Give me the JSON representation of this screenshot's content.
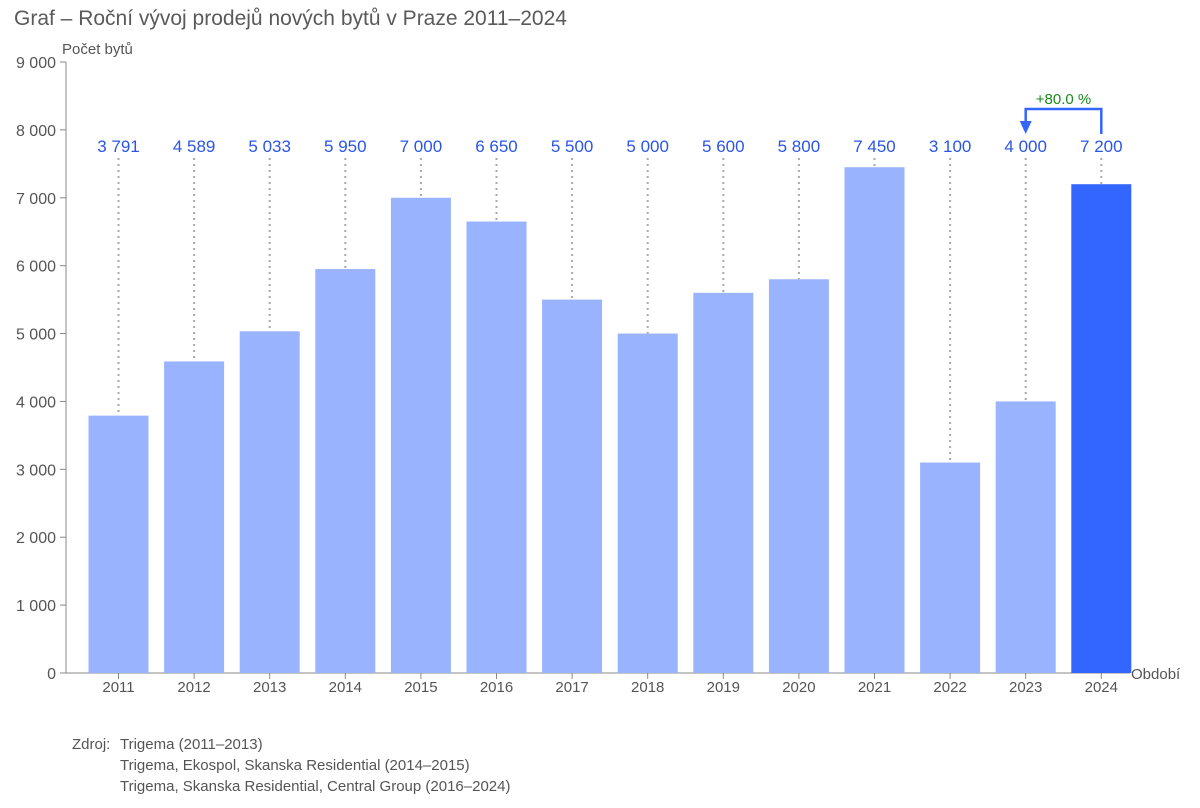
{
  "chart_data": {
    "type": "bar",
    "title": "Graf – Roční vývoj prodejů nových bytů v Praze 2011–2024",
    "ylabel": "Počet bytů",
    "xlabel": "Období",
    "ylim": [
      0,
      9000
    ],
    "yticks": [
      0,
      1000,
      2000,
      3000,
      4000,
      5000,
      6000,
      7000,
      8000,
      9000
    ],
    "ytick_labels": [
      "0",
      "1 000",
      "2 000",
      "3 000",
      "4 000",
      "5 000",
      "6 000",
      "7 000",
      "8 000",
      "9 000"
    ],
    "categories": [
      "2011",
      "2012",
      "2013",
      "2014",
      "2015",
      "2016",
      "2017",
      "2018",
      "2019",
      "2020",
      "2021",
      "2022",
      "2023",
      "2024"
    ],
    "values": [
      3791,
      4589,
      5033,
      5950,
      7000,
      6650,
      5500,
      5000,
      5600,
      5800,
      7450,
      3100,
      4000,
      7200
    ],
    "value_labels": [
      "3 791",
      "4 589",
      "5 033",
      "5 950",
      "7 000",
      "6 650",
      "5 500",
      "5 000",
      "5 600",
      "5 800",
      "7 450",
      "3 100",
      "4 000",
      "7 200"
    ],
    "highlight_index": 13,
    "grid": false,
    "annotation": {
      "text": "+80.0 %",
      "from_index": 12,
      "to_index": 13,
      "color": "#1a8a1a"
    },
    "colors": {
      "bar": "#99b3ff",
      "highlight": "#3366ff",
      "label": "#2a55e8",
      "axis": "#888888",
      "guide": "#aaaaaa"
    }
  },
  "source": {
    "label": "Zdroj:",
    "lines": [
      "Trigema (2011–2013)",
      "Trigema, Ekospol, Skanska Residential (2014–2015)",
      "Trigema, Skanska Residential, Central Group (2016–2024)"
    ]
  }
}
